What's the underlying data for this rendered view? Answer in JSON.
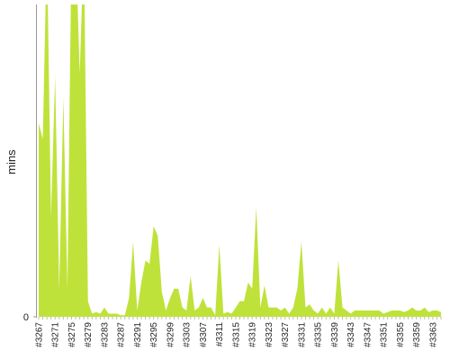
{
  "chart_data": {
    "type": "area",
    "ylabel": "mins",
    "color": "#bfe23a",
    "categories": [
      "#3267",
      null,
      null,
      null,
      "#3271",
      null,
      null,
      null,
      "#3275",
      null,
      null,
      null,
      "#3279",
      null,
      null,
      null,
      "#3283",
      null,
      null,
      null,
      "#3287",
      null,
      null,
      null,
      "#3291",
      null,
      null,
      null,
      "#3295",
      null,
      null,
      null,
      "#3299",
      null,
      null,
      null,
      "#3303",
      null,
      null,
      null,
      "#3307",
      null,
      null,
      null,
      "#3311",
      null,
      null,
      null,
      "#3315",
      null,
      null,
      null,
      "#3319",
      null,
      null,
      null,
      "#3323",
      null,
      null,
      null,
      "#3327",
      null,
      null,
      null,
      "#3331",
      null,
      null,
      null,
      "#3335",
      null,
      null,
      null,
      "#3339",
      null,
      null,
      null,
      "#3343",
      null,
      null,
      null,
      "#3347",
      null,
      null,
      null,
      "#3351",
      null,
      null,
      null,
      "#3355",
      null,
      null,
      null,
      "#3359",
      null,
      null,
      null,
      "#3363",
      null,
      null
    ],
    "values": [
      62,
      57,
      120,
      32,
      77,
      9,
      70,
      9,
      120,
      120,
      78,
      120,
      5,
      1,
      1.5,
      1,
      3,
      1,
      1,
      1,
      0.5,
      0.5,
      6,
      24,
      2,
      11,
      18,
      17,
      29,
      26,
      8,
      2,
      6,
      9,
      9,
      3,
      2,
      13,
      2,
      3,
      6,
      3,
      3,
      0.5,
      23,
      1,
      1.5,
      1,
      3,
      5,
      5,
      11,
      9,
      35,
      3,
      10,
      3,
      3,
      3,
      2,
      3,
      1,
      3,
      9,
      24,
      3,
      4,
      2,
      1,
      3,
      1,
      3,
      1,
      18,
      3,
      2,
      1,
      2,
      2,
      2,
      2,
      2,
      2,
      2,
      1,
      1.5,
      2,
      2,
      2,
      1.5,
      2,
      3,
      2,
      2,
      3,
      1.5,
      2,
      2,
      1.5
    ],
    "ylim": [
      0,
      100
    ],
    "yticks": [
      0
    ]
  }
}
